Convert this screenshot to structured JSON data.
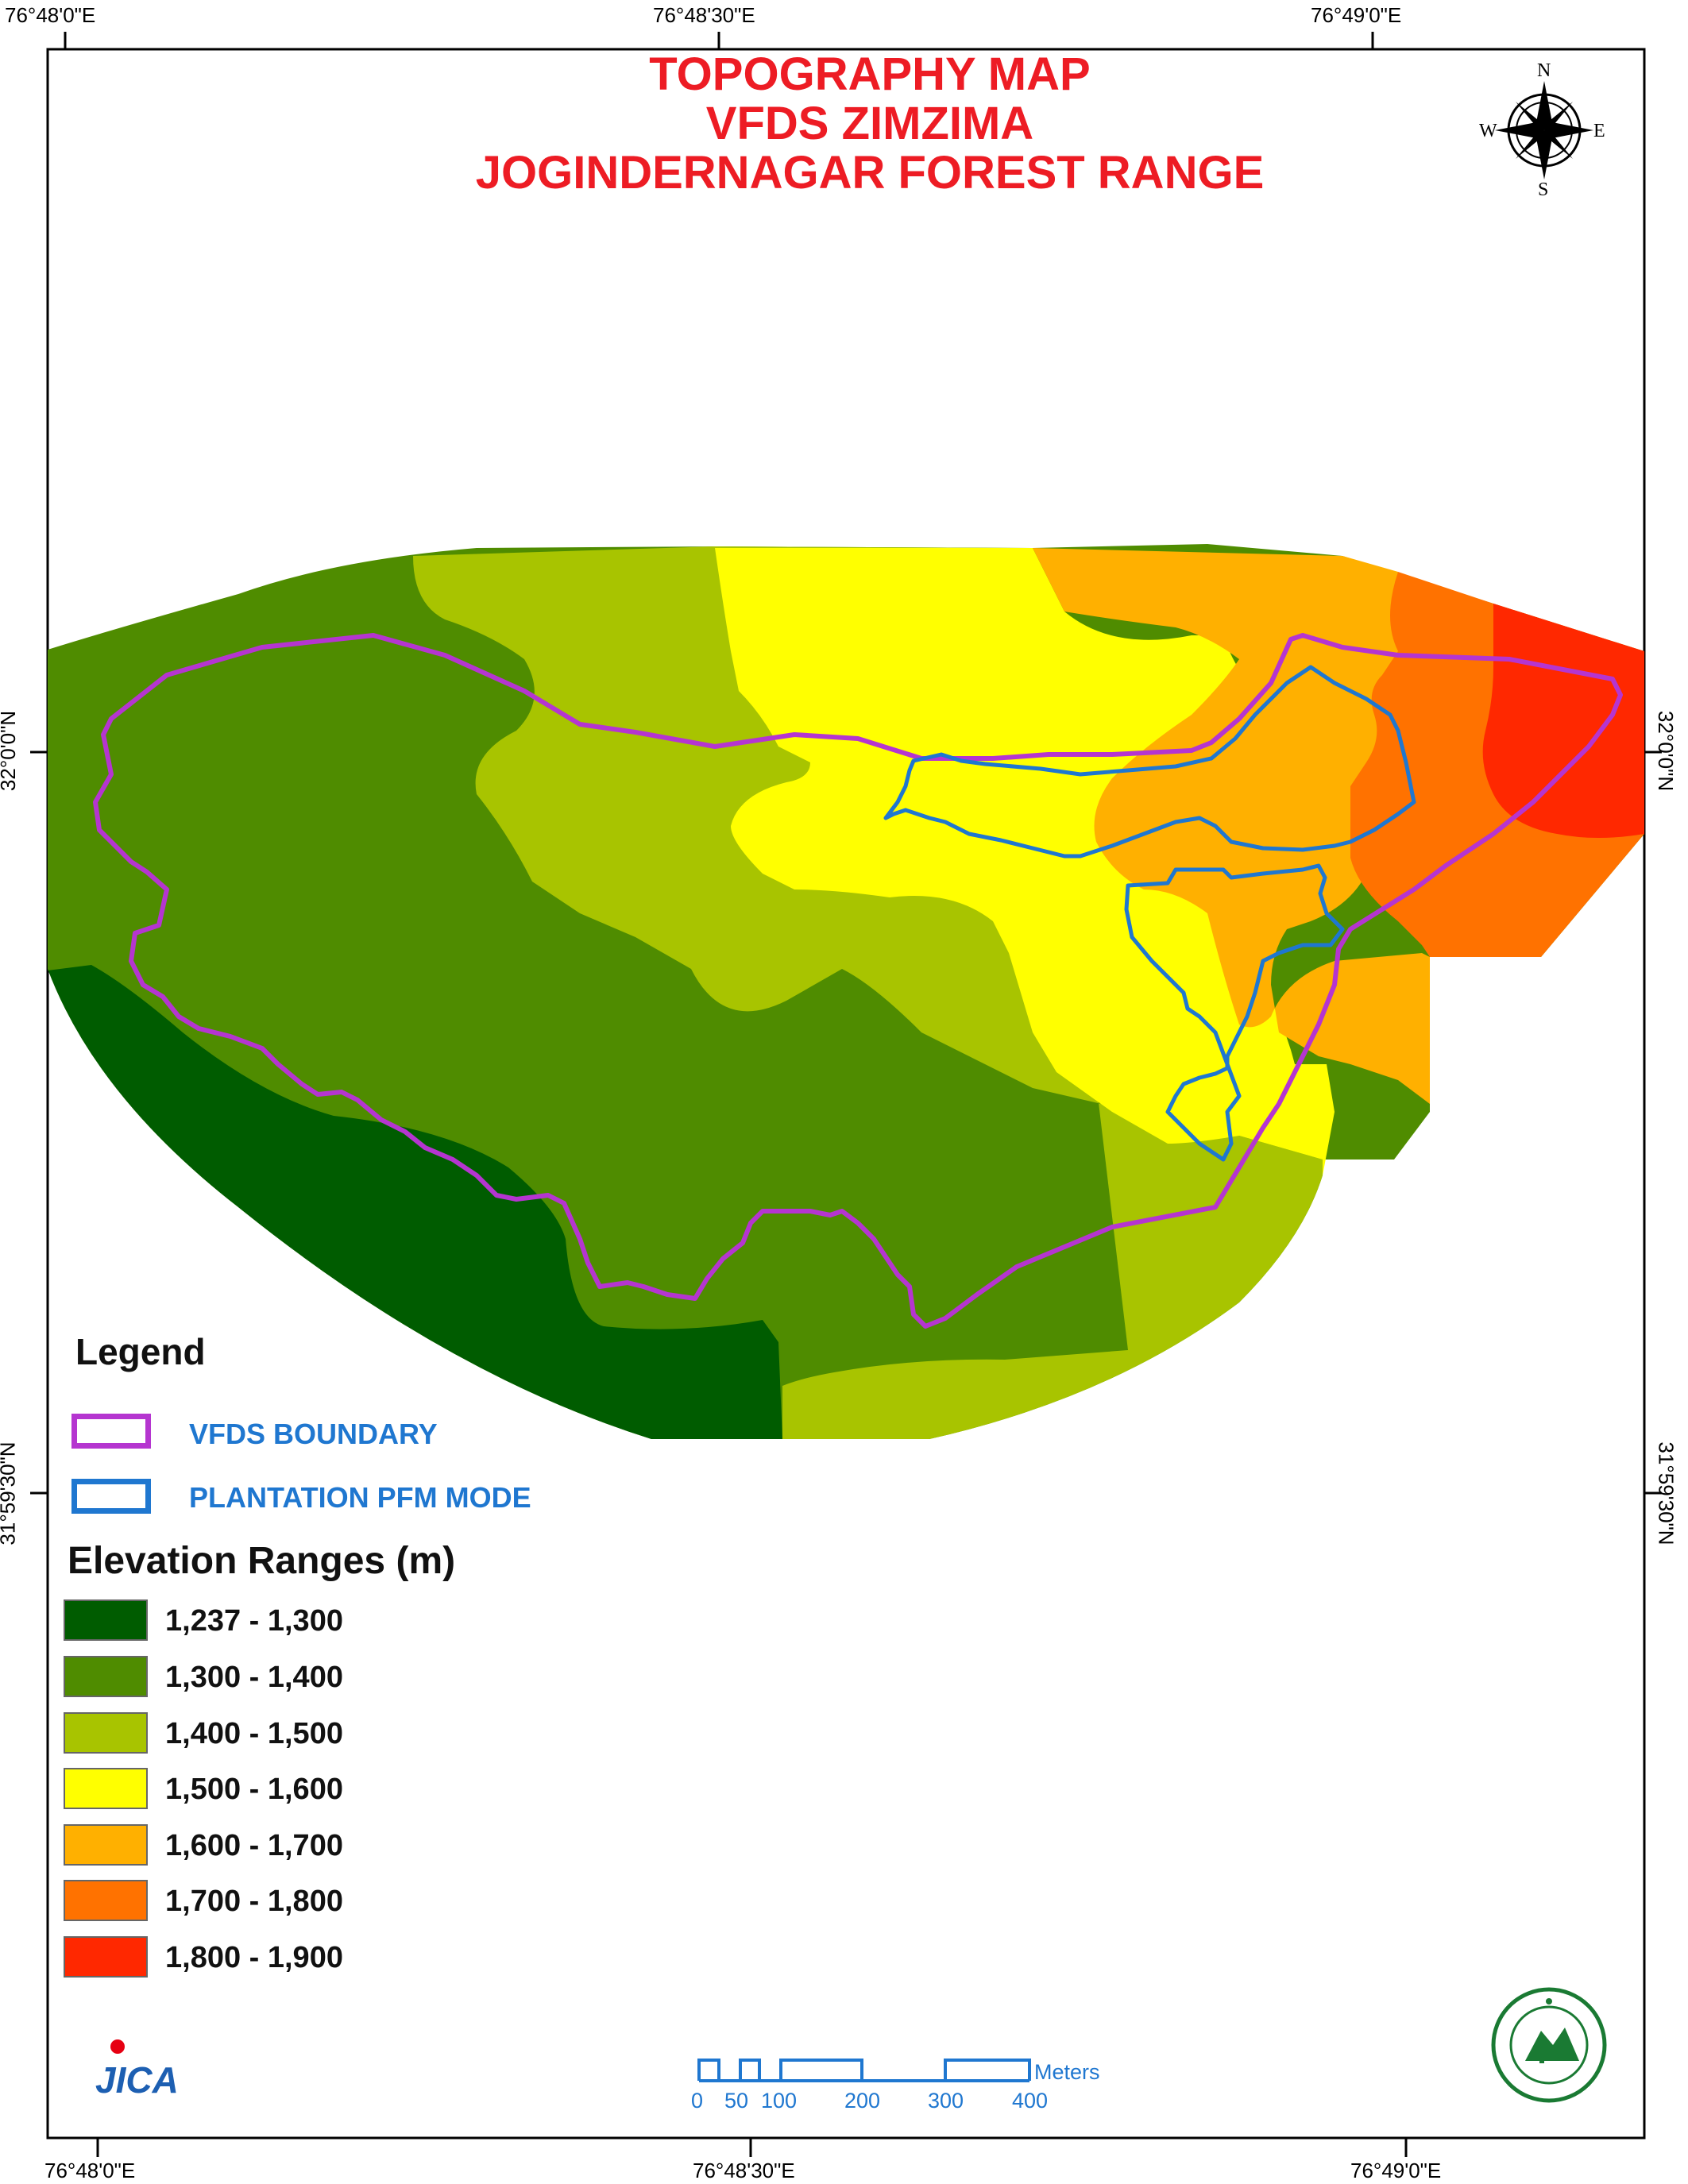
{
  "title": {
    "line1": "TOPOGRAPHY MAP",
    "line2": "VFDS ZIMZIMA",
    "line3": "JOGINDERNAGAR FOREST RANGE"
  },
  "coordinates": {
    "top": [
      "76°48'0\"E",
      "76°48'30\"E",
      "76°49'0\"E"
    ],
    "bottom": [
      "76°48'0\"E",
      "76°48'30\"E",
      "76°49'0\"E"
    ],
    "left": [
      "32°0'0\"N",
      "31°59'30\"N"
    ],
    "right": [
      "32°0'0\"N",
      "31°59'30\"N"
    ]
  },
  "north_arrow": {
    "n": "N",
    "s": "S",
    "e": "E",
    "w": "W"
  },
  "legend": {
    "heading": "Legend",
    "vfds_boundary": {
      "label": "VFDS BOUNDARY",
      "color": "#b535d0"
    },
    "plantation": {
      "label": "PLANTATION PFM MODE",
      "color": "#1f77d0"
    },
    "elevation_heading": "Elevation Ranges (m)",
    "ranges": [
      {
        "label": "1,237 - 1,300",
        "color": "#005c00"
      },
      {
        "label": "1,300 - 1,400",
        "color": "#4f8c00"
      },
      {
        "label": "1,400 - 1,500",
        "color": "#a8c400"
      },
      {
        "label": "1,500 - 1,600",
        "color": "#ffff00"
      },
      {
        "label": "1,600 - 1,700",
        "color": "#ffb000"
      },
      {
        "label": "1,700 - 1,800",
        "color": "#ff7200"
      },
      {
        "label": "1,800 - 1,900",
        "color": "#ff2800"
      }
    ]
  },
  "scale_bar": {
    "unit": "Meters",
    "labels": [
      "0",
      "50",
      "100",
      "200",
      "300",
      "400"
    ]
  },
  "logos": {
    "left": "JICA",
    "right": "forest department emblem"
  }
}
